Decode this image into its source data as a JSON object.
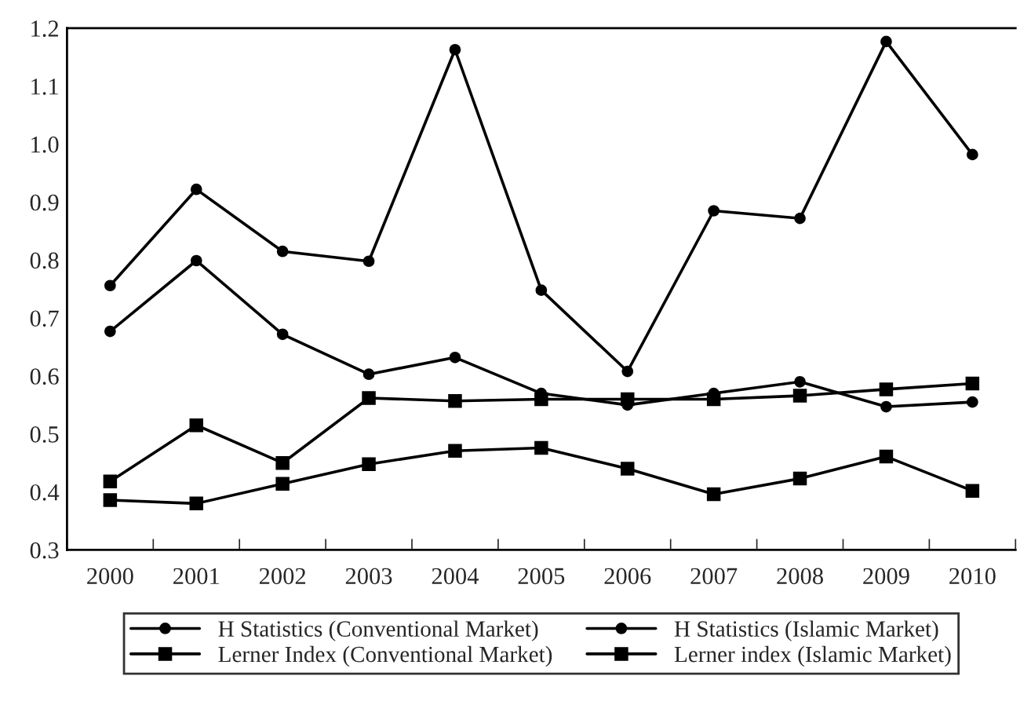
{
  "chart_data": {
    "type": "line",
    "categories": [
      "2000",
      "2001",
      "2002",
      "2003",
      "2004",
      "2005",
      "2006",
      "2007",
      "2008",
      "2009",
      "2010"
    ],
    "series": [
      {
        "name": "H Statistics (Conventional Market)",
        "color": "#000000",
        "marker": "circle",
        "values": [
          0.677,
          0.799,
          0.672,
          0.603,
          0.632,
          0.57,
          0.55,
          0.57,
          0.59,
          0.547,
          0.555
        ]
      },
      {
        "name": "H Statistics (Islamic Market)",
        "color": "#000000",
        "marker": "circle",
        "values": [
          0.756,
          0.922,
          0.815,
          0.798,
          1.163,
          0.748,
          0.608,
          0.885,
          0.872,
          1.177,
          0.982
        ]
      },
      {
        "name": "Lerner Index (Conventional Market)",
        "color": "#000000",
        "marker": "square",
        "values": [
          0.386,
          0.38,
          0.414,
          0.448,
          0.471,
          0.476,
          0.44,
          0.396,
          0.423,
          0.461,
          0.402
        ]
      },
      {
        "name": "Lerner index (Islamic Market)",
        "color": "#000000",
        "marker": "square",
        "values": [
          0.418,
          0.515,
          0.45,
          0.562,
          0.557,
          0.56,
          0.56,
          0.56,
          0.566,
          0.577,
          0.587
        ]
      }
    ],
    "ylim": [
      0.3,
      1.2
    ],
    "yticks": [
      0.3,
      0.4,
      0.5,
      0.6,
      0.7,
      0.8,
      0.9,
      {
        "value": 1.0,
        "label": "1.0"
      },
      1.1,
      1.2
    ],
    "grid": false,
    "legend": "bottom",
    "line_style": "solid"
  }
}
